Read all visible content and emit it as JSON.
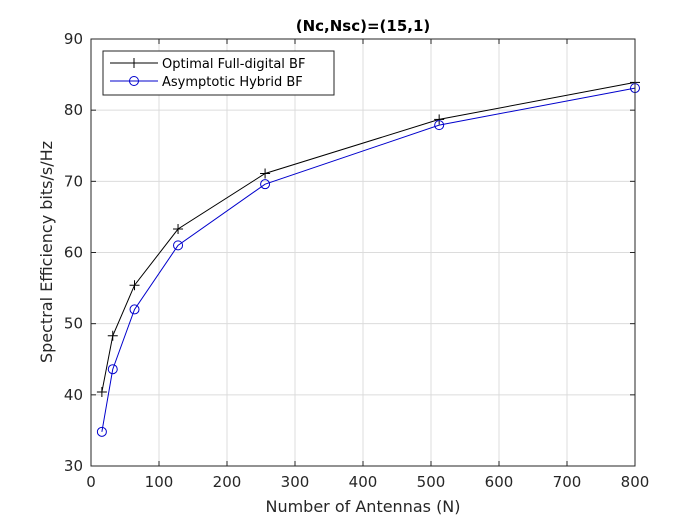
{
  "chart_data": {
    "type": "line",
    "title": "(Nc,Nsc)=(15,1)",
    "xlabel": "Number of Antennas (N)",
    "ylabel": "Spectral Efficiency bits/s/Hz",
    "xlim": [
      0,
      800
    ],
    "ylim": [
      30,
      90
    ],
    "xticks": [
      0,
      100,
      200,
      300,
      400,
      500,
      600,
      700,
      800
    ],
    "yticks": [
      30,
      40,
      50,
      60,
      70,
      80,
      90
    ],
    "grid": true,
    "legend_position": "top-left",
    "series": [
      {
        "name": "Optimal Full-digital BF",
        "color": "#000000",
        "marker": "plus",
        "x": [
          16,
          32,
          64,
          128,
          256,
          512,
          800
        ],
        "y": [
          40.4,
          48.3,
          55.4,
          63.3,
          71.1,
          78.7,
          83.9
        ]
      },
      {
        "name": "Asymptotic Hybrid BF",
        "color": "#0000cc",
        "marker": "circle",
        "x": [
          16,
          32,
          64,
          128,
          256,
          512,
          800
        ],
        "y": [
          34.8,
          43.6,
          52.0,
          61.0,
          69.6,
          77.9,
          83.1
        ]
      }
    ]
  }
}
